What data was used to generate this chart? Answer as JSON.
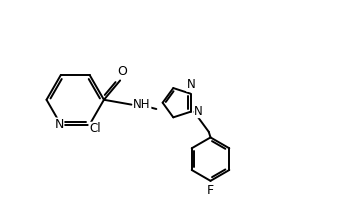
{
  "background_color": "#ffffff",
  "line_color": "#000000",
  "line_width": 1.4,
  "font_size": 8.5,
  "figsize": [
    3.57,
    2.02
  ],
  "dpi": 100,
  "xlim": [
    0,
    10
  ],
  "ylim": [
    0,
    5.66
  ]
}
